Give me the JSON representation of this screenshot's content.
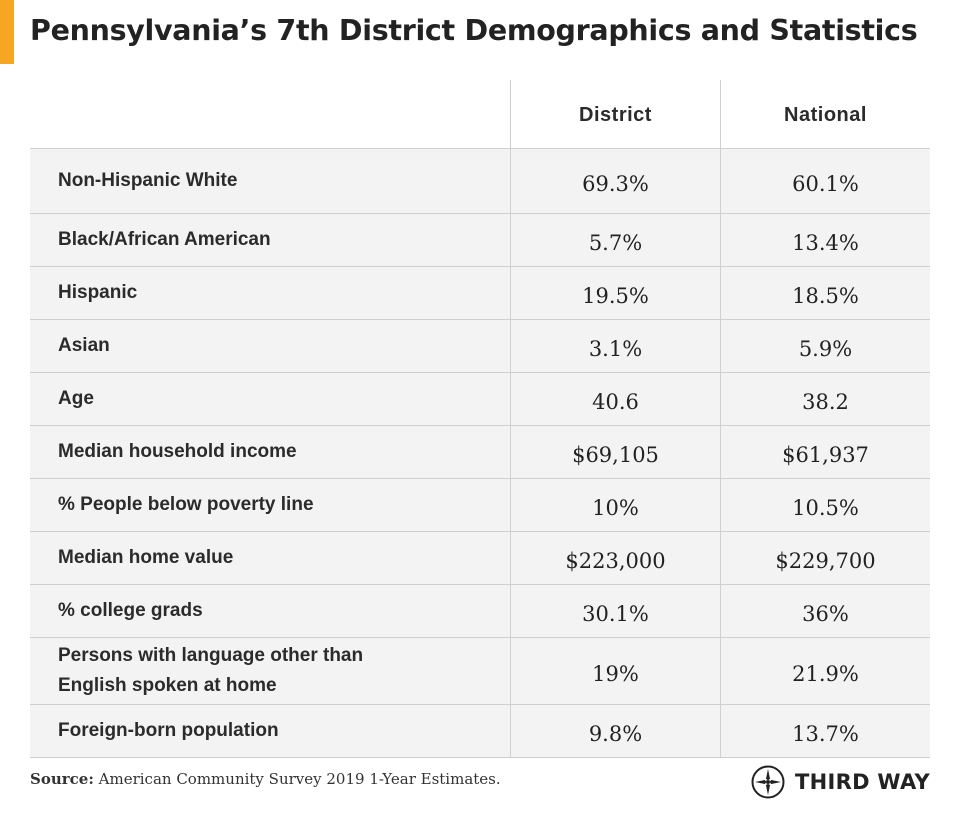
{
  "title": "Pennsylvania’s 7th District Demographics and Statistics",
  "columns": {
    "district": "District",
    "national": "National"
  },
  "rows": [
    {
      "label": "Non-Hispanic White",
      "district": "69.3%",
      "national": "60.1%"
    },
    {
      "label": "Black/African American",
      "district": "5.7%",
      "national": "13.4%"
    },
    {
      "label": "Hispanic",
      "district": "19.5%",
      "national": "18.5%"
    },
    {
      "label": "Asian",
      "district": "3.1%",
      "national": "5.9%"
    },
    {
      "label": "Age",
      "district": "40.6",
      "national": "38.2"
    },
    {
      "label": "Median household income",
      "district": "$69,105",
      "national": "$61,937"
    },
    {
      "label": "% People below poverty line",
      "district": "10%",
      "national": "10.5%"
    },
    {
      "label": "Median home value",
      "district": "$223,000",
      "national": "$229,700"
    },
    {
      "label": "% college grads",
      "district": "30.1%",
      "national": "36%"
    },
    {
      "label_line1": "Persons with language other than",
      "label_line2": "English spoken at home",
      "district": "19%",
      "national": "21.9%"
    },
    {
      "label": "Foreign-born population",
      "district": "9.8%",
      "national": "13.7%"
    }
  ],
  "source": {
    "label": "Source:",
    "text": "American Community Survey 2019 1-Year Estimates."
  },
  "logo": {
    "text": "THIRD WAY",
    "icon": "compass-star-icon"
  },
  "colors": {
    "accent": "#f5a623",
    "row_bg": "#f3f3f3",
    "grid": "#cfcfcf"
  }
}
